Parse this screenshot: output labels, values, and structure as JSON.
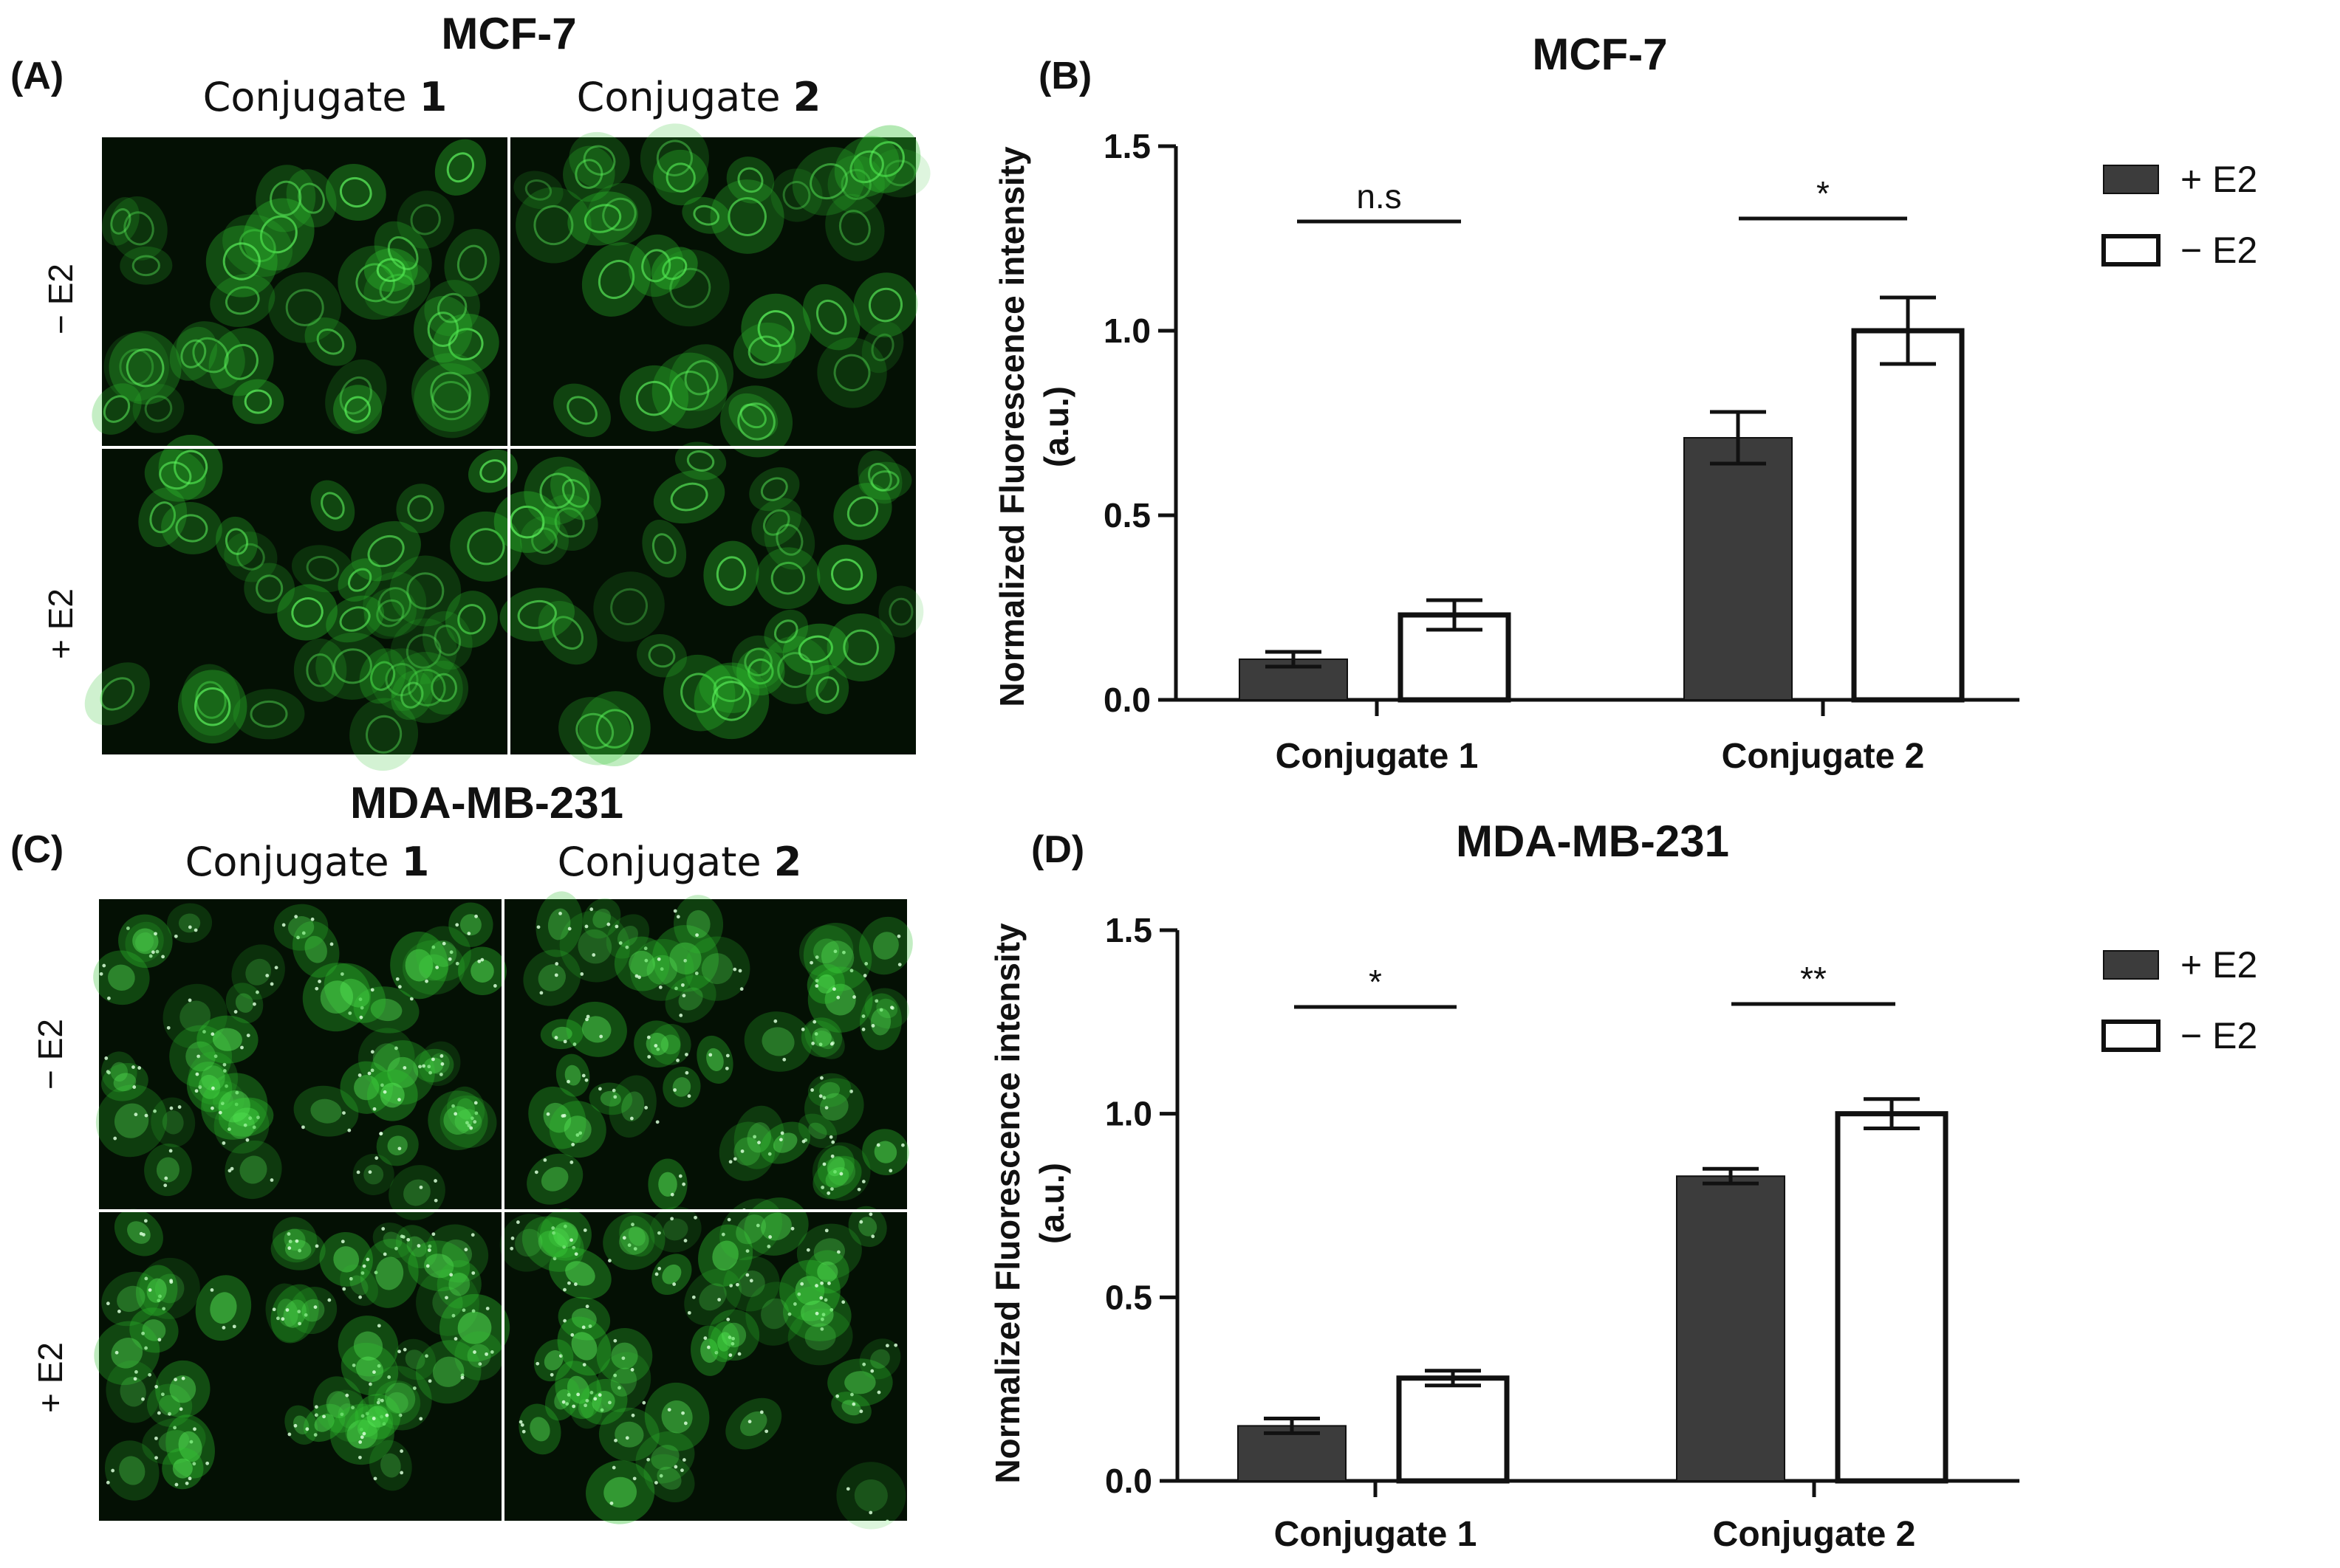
{
  "panels": {
    "A": {
      "label": "(A)",
      "title": "MCF-7",
      "col_labels": [
        {
          "text": "Conjugate ",
          "num": "1"
        },
        {
          "text": "Conjugate ",
          "num": "2"
        }
      ],
      "row_labels": [
        "− E2",
        "+ E2"
      ]
    },
    "C": {
      "label": "(C)",
      "title": "MDA-MB-231",
      "col_labels": [
        {
          "text": "Conjugate ",
          "num": "1"
        },
        {
          "text": "Conjugate ",
          "num": "2"
        }
      ],
      "row_labels": [
        "− E2",
        "+ E2"
      ]
    }
  },
  "colors": {
    "plus_e2_fill": "#3c3c3c",
    "minus_e2_fill": "#ffffff",
    "bar_stroke": "#111111",
    "micrograph_background": "#041004",
    "cell_green": "#2fc22f",
    "cell_ring": "#5cf05c"
  },
  "chart_data": [
    {
      "panel": "(B)",
      "type": "bar",
      "title": "MCF-7",
      "ylabel": "Normalized Fluorescence intensity (a.u.)",
      "ylabel_lines": [
        "Normalized Fluorescence intensity",
        "(a.u.)"
      ],
      "xlabel": "",
      "categories": [
        "Conjugate 1",
        "Conjugate 2"
      ],
      "ylim": [
        0,
        1.5
      ],
      "yticks": [
        0.0,
        0.5,
        1.0,
        1.5
      ],
      "ytick_labels": [
        "0.0",
        "0.5",
        "1.0",
        "1.5"
      ],
      "series": [
        {
          "name": "+ E2",
          "values": [
            0.11,
            0.71
          ],
          "errors": [
            0.02,
            0.07
          ]
        },
        {
          "name": "− E2",
          "values": [
            0.23,
            1.0
          ],
          "errors": [
            0.04,
            0.09
          ]
        }
      ],
      "significance": [
        "n.s",
        "*"
      ],
      "legend_position": "top-right",
      "grid": false
    },
    {
      "panel": "(D)",
      "type": "bar",
      "title": "MDA-MB-231",
      "ylabel": "Normalized Fluorescence intensity (a.u.)",
      "ylabel_lines": [
        "Normalized Fluorescence intensity",
        "(a.u.)"
      ],
      "xlabel": "",
      "categories": [
        "Conjugate 1",
        "Conjugate 2"
      ],
      "ylim": [
        0,
        1.5
      ],
      "yticks": [
        0.0,
        0.5,
        1.0,
        1.5
      ],
      "ytick_labels": [
        "0.0",
        "0.5",
        "1.0",
        "1.5"
      ],
      "series": [
        {
          "name": "+ E2",
          "values": [
            0.15,
            0.83
          ],
          "errors": [
            0.02,
            0.02
          ]
        },
        {
          "name": "− E2",
          "values": [
            0.28,
            1.0
          ],
          "errors": [
            0.02,
            0.04
          ]
        }
      ],
      "significance": [
        "*",
        "**"
      ],
      "legend_position": "top-right",
      "grid": false
    }
  ]
}
